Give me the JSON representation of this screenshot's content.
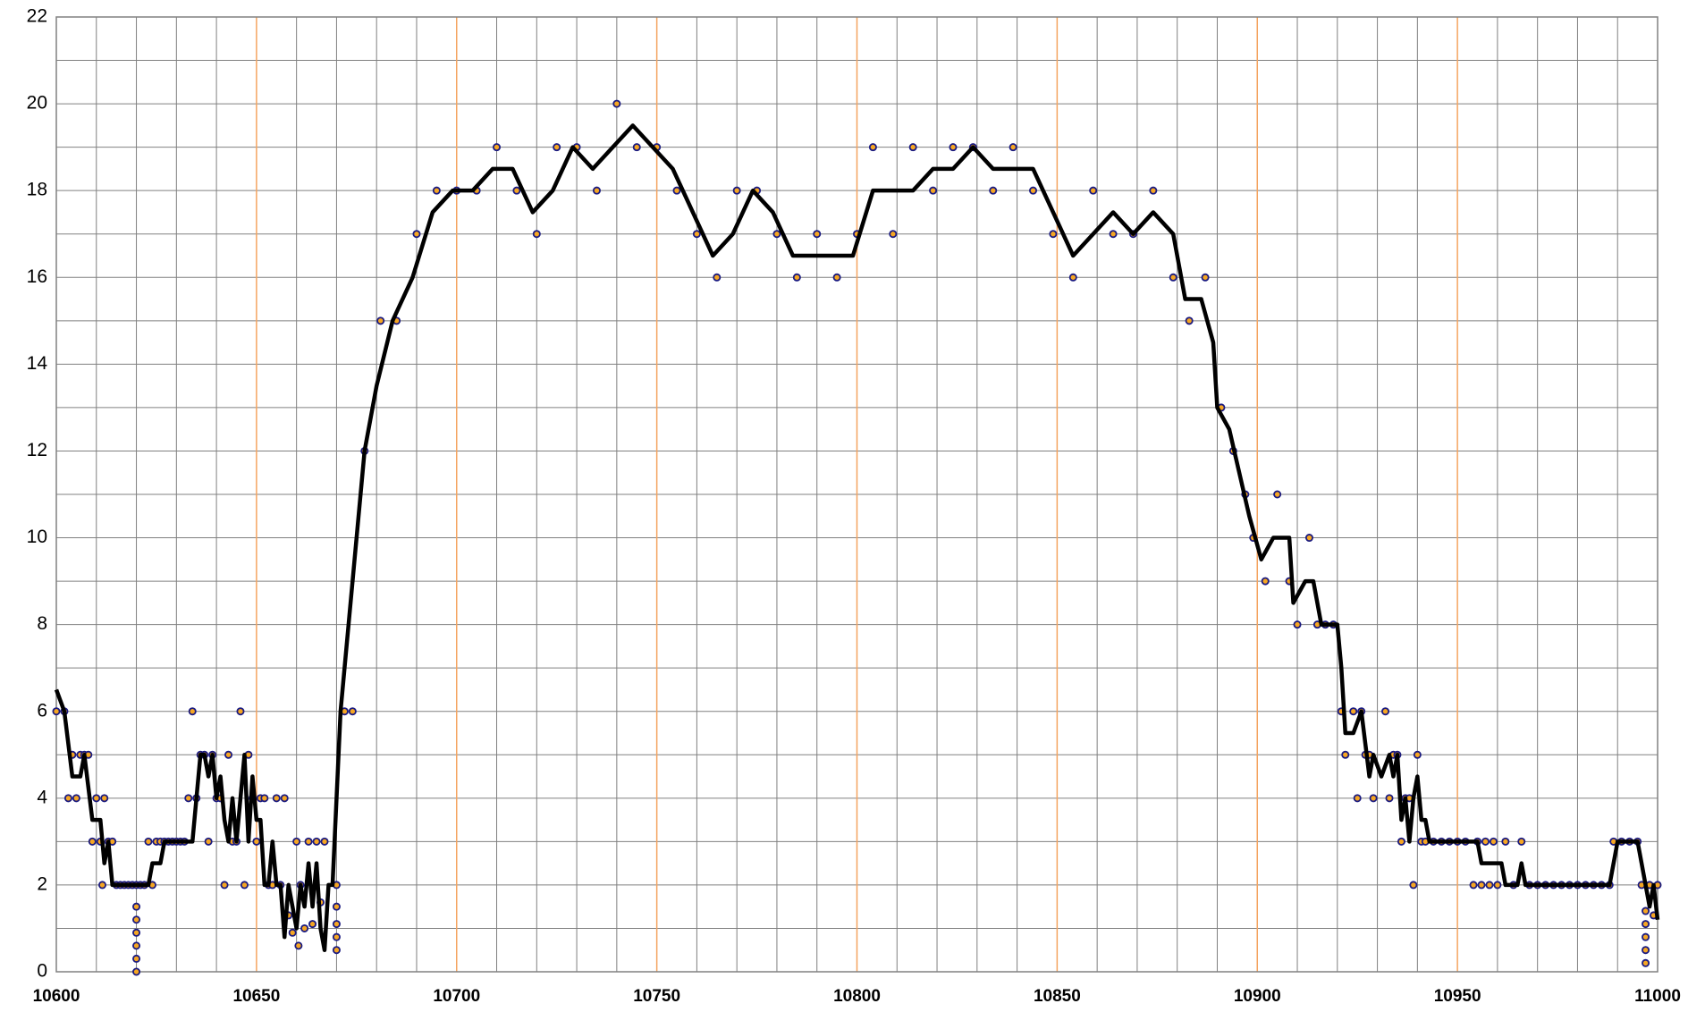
{
  "chart_data": {
    "type": "line",
    "xlim": [
      10600,
      11000
    ],
    "xticks": [
      10600,
      10650,
      10700,
      10750,
      10800,
      10850,
      10900,
      10950,
      11000
    ],
    "ylim": [
      0,
      22
    ],
    "yticks": [
      0,
      2,
      4,
      6,
      8,
      10,
      12,
      14,
      16,
      18,
      20,
      22
    ],
    "grid": true,
    "major_x_grid_color": "#f4a460",
    "grid_color": "#808080",
    "series": [
      {
        "type": "scatter",
        "color": "#f5a623",
        "edge_color": "#1a1a80",
        "x": [
          10600,
          10602,
          10603,
          10604,
          10605,
          10606,
          10607,
          10608,
          10609,
          10610,
          10611,
          10611.5,
          10612,
          10613,
          10614,
          10615,
          10616,
          10617,
          10618,
          10619,
          10620,
          10620,
          10620,
          10620,
          10620,
          10620,
          10620,
          10621,
          10622,
          10623,
          10624,
          10625,
          10626,
          10627,
          10628,
          10629,
          10630,
          10631,
          10632,
          10633,
          10634,
          10635,
          10636,
          10637,
          10638,
          10639,
          10640,
          10641,
          10642,
          10643,
          10644,
          10645,
          10646,
          10647,
          10648,
          10649,
          10650,
          10651,
          10652,
          10653,
          10654,
          10655,
          10656,
          10657,
          10658,
          10659,
          10660,
          10660.5,
          10661,
          10662,
          10663,
          10664,
          10665,
          10666,
          10667,
          10670,
          10670,
          10670,
          10670,
          10670,
          10672,
          10674,
          10677,
          10681,
          10685,
          10690,
          10695,
          10700,
          10705,
          10710,
          10715,
          10720,
          10725,
          10730,
          10735,
          10740,
          10745,
          10750,
          10755,
          10760,
          10765,
          10770,
          10775,
          10780,
          10785,
          10790,
          10795,
          10800,
          10804,
          10809,
          10814,
          10819,
          10824,
          10829,
          10834,
          10839,
          10844,
          10849,
          10854,
          10859,
          10864,
          10869,
          10874,
          10879,
          10883,
          10887,
          10891,
          10894,
          10897,
          10899,
          10902,
          10905,
          10908,
          10910,
          10913,
          10915,
          10917,
          10919,
          10921,
          10922,
          10924,
          10925,
          10926,
          10927,
          10928,
          10929,
          10932,
          10933,
          10934,
          10935,
          10936,
          10937,
          10938,
          10939,
          10940,
          10941,
          10942,
          10944,
          10946,
          10948,
          10950,
          10952,
          10954,
          10955,
          10956,
          10957,
          10958,
          10959,
          10960,
          10962,
          10964,
          10966,
          10968,
          10970,
          10972,
          10974,
          10976,
          10978,
          10980,
          10982,
          10984,
          10986,
          10988,
          10989,
          10991,
          10993,
          10995,
          10996,
          10997,
          10997,
          10997,
          10997,
          10997,
          10998,
          10999,
          11000
        ],
        "values": [
          6,
          6,
          4,
          5,
          4,
          5,
          5,
          5,
          3,
          4,
          3,
          2,
          4,
          3,
          3,
          2,
          2,
          2,
          2,
          2,
          0,
          0.3,
          0.6,
          0.9,
          1.2,
          1.5,
          2,
          2,
          2,
          3,
          2,
          3,
          3,
          3,
          3,
          3,
          3,
          3,
          3,
          4,
          6,
          4,
          5,
          5,
          3,
          5,
          4,
          4,
          2,
          5,
          3,
          3,
          6,
          2,
          5,
          4,
          3,
          4,
          4,
          2,
          2,
          4,
          2,
          4,
          1.3,
          0.9,
          3,
          0.6,
          2,
          1,
          3,
          1.1,
          3,
          1.6,
          3,
          0.5,
          0.8,
          1.1,
          1.5,
          2,
          6,
          6,
          12,
          15,
          15,
          17,
          18,
          18,
          18,
          19,
          18,
          17,
          19,
          19,
          18,
          20,
          19,
          19,
          18,
          17,
          16,
          18,
          18,
          17,
          16,
          17,
          16,
          17,
          19,
          17,
          19,
          18,
          19,
          19,
          18,
          19,
          18,
          17,
          16,
          18,
          17,
          17,
          18,
          16,
          15,
          16,
          13,
          12,
          11,
          10,
          9,
          11,
          9,
          8,
          10,
          8,
          8,
          8,
          6,
          5,
          6,
          4,
          6,
          5,
          5,
          4,
          6,
          4,
          5,
          5,
          3,
          4,
          4,
          2,
          5,
          3,
          3,
          3,
          3,
          3,
          3,
          3,
          2,
          3,
          2,
          3,
          2,
          3,
          2,
          3,
          2,
          3,
          2,
          2,
          2,
          2,
          2,
          2,
          2,
          2,
          2,
          2,
          2,
          3,
          3,
          3,
          3,
          2,
          0.2,
          0.5,
          0.8,
          1.1,
          1.4,
          2,
          1.3,
          2
        ]
      },
      {
        "type": "line",
        "color": "#000000",
        "x": [
          10600,
          10602,
          10604,
          10606,
          10607,
          10609,
          10611,
          10612,
          10613,
          10614,
          10619,
          10620,
          10623,
          10624,
          10626,
          10627,
          10634,
          10635,
          10636,
          10637,
          10638,
          10639,
          10640,
          10641,
          10642,
          10643,
          10644,
          10645,
          10646,
          10647,
          10648,
          10649,
          10650,
          10651,
          10652,
          10653,
          10654,
          10655,
          10656,
          10657,
          10658,
          10659,
          10660,
          10661,
          10662,
          10663,
          10664,
          10665,
          10666,
          10667,
          10668,
          10669,
          10671,
          10677,
          10680,
          10684,
          10689,
          10694,
          10699,
          10704,
          10709,
          10714,
          10719,
          10724,
          10729,
          10734,
          10739,
          10744,
          10749,
          10754,
          10759,
          10764,
          10769,
          10774,
          10779,
          10784,
          10789,
          10794,
          10799,
          10804,
          10809,
          10814,
          10819,
          10824,
          10829,
          10834,
          10839,
          10844,
          10849,
          10854,
          10859,
          10864,
          10869,
          10874,
          10879,
          10882,
          10886,
          10889,
          10890,
          10893,
          10898,
          10901,
          10904,
          10908,
          10909,
          10912,
          10914,
          10916,
          10920,
          10921,
          10922,
          10924,
          10926,
          10928,
          10929,
          10931,
          10933,
          10934,
          10935,
          10936,
          10937,
          10938,
          10939,
          10940,
          10941,
          10942,
          10943,
          10955,
          10956,
          10961,
          10962,
          10965,
          10966,
          10967,
          10988,
          10990,
          10995,
          10997,
          10998,
          10999,
          11000
        ],
        "values": [
          6.5,
          6,
          4.5,
          4.5,
          5,
          3.5,
          3.5,
          2.5,
          3,
          2,
          2,
          2,
          2,
          2.5,
          2.5,
          3,
          3,
          4,
          5,
          5,
          4.5,
          5,
          4,
          4.5,
          3.5,
          3,
          4,
          3,
          4,
          5,
          3,
          4.5,
          3.5,
          3.5,
          2,
          2,
          3,
          2,
          2,
          0.8,
          2,
          1.5,
          1,
          2,
          1.5,
          2.5,
          1.5,
          2.5,
          1,
          0.5,
          2,
          2,
          6,
          12,
          13.5,
          15,
          16,
          17.5,
          18,
          18,
          18.5,
          18.5,
          17.5,
          18,
          19,
          18.5,
          19,
          19.5,
          19,
          18.5,
          17.5,
          16.5,
          17,
          18,
          17.5,
          16.5,
          16.5,
          16.5,
          16.5,
          18,
          18,
          18,
          18.5,
          18.5,
          19,
          18.5,
          18.5,
          18.5,
          17.5,
          16.5,
          17,
          17.5,
          17,
          17.5,
          17,
          15.5,
          15.5,
          14.5,
          13,
          12.5,
          10.5,
          9.5,
          10,
          10,
          8.5,
          9,
          9,
          8,
          8,
          7,
          5.5,
          5.5,
          6,
          4.5,
          5,
          4.5,
          5,
          4.5,
          5,
          3.5,
          4,
          3,
          4,
          4.5,
          3.5,
          3.5,
          3,
          3,
          2.5,
          2.5,
          2,
          2,
          2.5,
          2,
          2,
          3,
          3,
          2,
          1.5,
          2,
          1.2
        ]
      }
    ]
  }
}
